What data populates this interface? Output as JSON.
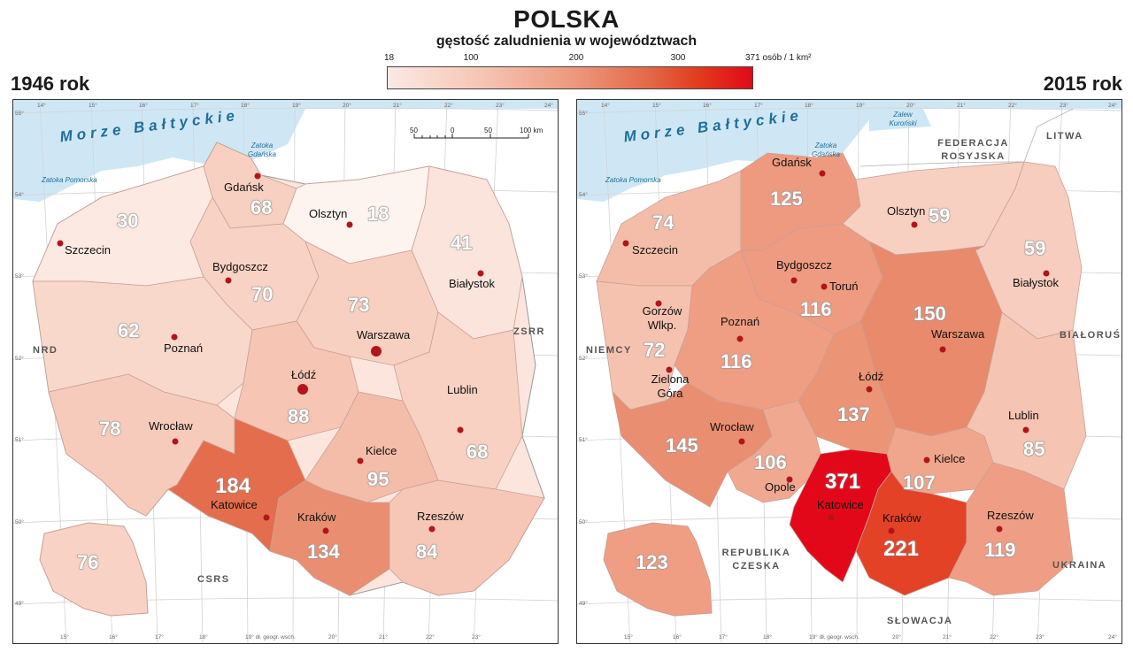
{
  "header": {
    "title": "POLSKA",
    "subtitle": "gęstość zaludnienia w województwach"
  },
  "legend": {
    "ticks": [
      "18",
      "100",
      "200",
      "300"
    ],
    "max_unit": "371 osób / 1 km²",
    "colors": [
      "#fbe9e4",
      "#f6c6b5",
      "#ee9a80",
      "#e36847",
      "#e2081a"
    ]
  },
  "map_1946": {
    "year": "1946 rok",
    "sea": "Morze Bałtyckie",
    "gulf_pomorska": "Zatoka Pomorska",
    "gulf_gdanska": "Zatoka Gdańska",
    "scale": {
      "ticks": [
        "50",
        "0",
        "50",
        "100 km"
      ]
    },
    "countries": {
      "west": "NRD",
      "east": "ZSRR",
      "south": "CSRS"
    },
    "lon_top": [
      "14°",
      "15°",
      "16°",
      "17°",
      "18°",
      "19°",
      "20°",
      "21°",
      "22°",
      "23°",
      "24°"
    ],
    "lon_bottom": [
      "15°",
      "16°",
      "17°",
      "18°",
      "19° dł. geogr. wsch.",
      "20°",
      "21°",
      "22°",
      "23°"
    ],
    "lat": [
      "55°",
      "54°",
      "53°",
      "52°",
      "51°",
      "50°",
      "49°"
    ],
    "cities": [
      "Gdańsk",
      "Olsztyn",
      "Szczecin",
      "Bydgoszcz",
      "Białystok",
      "Poznań",
      "Warszawa",
      "Łódź",
      "Wrocław",
      "Kielce",
      "Lublin",
      "Katowice",
      "Kraków",
      "Rzeszów"
    ],
    "values": [
      "30",
      "68",
      "18",
      "41",
      "70",
      "73",
      "62",
      "88",
      "78",
      "68",
      "95",
      "184",
      "134",
      "84",
      "76"
    ]
  },
  "map_2015": {
    "year": "2015 rok",
    "sea": "Morze Bałtyckie",
    "gulf_pomorska": "Zatoka Pomorska",
    "gulf_gdanska": "Zatoka Gdańska",
    "lagoon": "Zalew Kuroński",
    "countries": {
      "russia": "FEDERACJA ROSYJSKA",
      "lithuania": "LITWA",
      "germany": "NIEMCY",
      "belarus": "BIAŁORUŚ",
      "czechia": "REPUBLIKA CZESKA",
      "ukraine": "UKRAINA",
      "slovakia": "SŁOWACJA"
    },
    "lon_top": [
      "14°",
      "15°",
      "16°",
      "17°",
      "18°",
      "19°",
      "20°",
      "21°",
      "22°",
      "23°",
      "24°"
    ],
    "lon_bottom": [
      "15°",
      "16°",
      "17°",
      "18°",
      "19° dł. geogr. wsch.",
      "20°",
      "21°",
      "22°",
      "23°",
      "24°"
    ],
    "lat": [
      "55°",
      "54°",
      "53°",
      "52°",
      "51°",
      "50°",
      "49°"
    ],
    "cities": [
      "Gdańsk",
      "Olsztyn",
      "Szczecin",
      "Bydgoszcz",
      "Toruń",
      "Białystok",
      "Gorzów Wlkp.",
      "Poznań",
      "Warszawa",
      "Zielona Góra",
      "Łódź",
      "Wrocław",
      "Lublin",
      "Kielce",
      "Opole",
      "Katowice",
      "Kraków",
      "Rzeszów"
    ],
    "values": [
      "74",
      "125",
      "59",
      "59",
      "116",
      "150",
      "72",
      "116",
      "137",
      "145",
      "85",
      "106",
      "107",
      "371",
      "221",
      "119",
      "123"
    ]
  }
}
